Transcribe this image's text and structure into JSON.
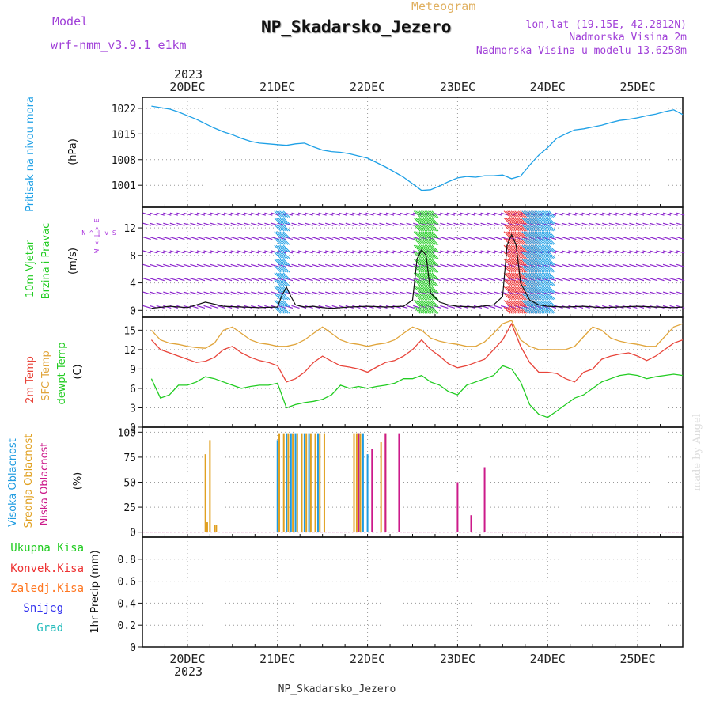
{
  "header": {
    "model_label": "Model",
    "model_name": "wrf-nmm_v3.9.1  e1km",
    "meteogram_label": "Meteogram",
    "station_title": "NP_Skadarsko_Jezero",
    "lonlat": "lon,lat (19.15E, 42.2812N)",
    "elevation": "Nadmorska Visina 2m",
    "model_elevation": "Nadmorska Visina u modelu 13.6258m",
    "footer_station": "NP_Skadarsko_Jezero",
    "credit": "made by Angel"
  },
  "colors": {
    "pressure": "#1ea0e6",
    "wind_label": "#22cc22",
    "temp2m": "#e8443a",
    "sfc_temp": "#e0a43a",
    "dewpt": "#22cc22",
    "high_cloud": "#1e9be0",
    "mid_cloud": "#e0a020",
    "low_cloud": "#cc1a8a",
    "total_precip": "#22cc22",
    "conv_precip": "#ee3333",
    "frozen_precip": "#ff7722",
    "snow": "#3333ee",
    "hail": "#22bbbb",
    "compass": "#aa33dd"
  },
  "time_axis": {
    "year": "2023",
    "ticks": [
      "20DEC",
      "21DEC",
      "22DEC",
      "23DEC",
      "24DEC",
      "25DEC"
    ]
  },
  "panels": {
    "pressure": {
      "label": "Pritisak na nivou mora",
      "unit": "(hPa)"
    },
    "wind": {
      "label1": "10m Vjetar",
      "label2": "Brzina i Pravac",
      "unit": "(m/s)",
      "compass": "W  <-|->  E",
      "compass_ns": "N ^ | v S"
    },
    "temp": {
      "label_t2": "2m Temp",
      "label_sfc": "SFC Temp",
      "label_dew": "dewpt Temp",
      "unit": "(C)"
    },
    "cloud": {
      "label_high": "Visoka Oblacnost",
      "label_mid": "Srednja Oblacnost",
      "label_low": "Niska Oblacnost",
      "unit": "(%)"
    },
    "precip": {
      "legend": [
        "Ukupna Kisa",
        "Konvek.Kisa",
        "Zaledj.Kisa",
        "Snijeg",
        "Grad"
      ],
      "label": "1hr Precip (mm)"
    }
  },
  "chart_data": [
    {
      "type": "line",
      "title": "Pritisak na nivou mora",
      "ylabel": "(hPa)",
      "ylim": [
        995,
        1025
      ],
      "yticks": [
        1001,
        1008,
        1015,
        1022
      ],
      "x": [
        19.6,
        19.7,
        19.8,
        19.9,
        20.0,
        20.1,
        20.2,
        20.3,
        20.4,
        20.5,
        20.6,
        20.7,
        20.8,
        20.9,
        21.0,
        21.1,
        21.2,
        21.3,
        21.4,
        21.5,
        21.6,
        21.7,
        21.8,
        21.9,
        22.0,
        22.1,
        22.2,
        22.3,
        22.4,
        22.5,
        22.6,
        22.7,
        22.8,
        22.9,
        23.0,
        23.1,
        23.2,
        23.3,
        23.4,
        23.5,
        23.6,
        23.7,
        23.8,
        23.9,
        24.0,
        24.1,
        24.2,
        24.3,
        24.4,
        24.5,
        24.6,
        24.7,
        24.8,
        24.9,
        25.0,
        25.1,
        25.2,
        25.3,
        25.4,
        25.5
      ],
      "series": [
        {
          "name": "Pritisak na nivou mora",
          "values": [
            1022.6,
            1022.2,
            1021.8,
            1021.0,
            1020.0,
            1019.0,
            1017.8,
            1016.6,
            1015.6,
            1014.8,
            1013.8,
            1013.0,
            1012.5,
            1012.3,
            1012.1,
            1011.9,
            1012.3,
            1012.5,
            1011.5,
            1010.6,
            1010.2,
            1010.0,
            1009.6,
            1009.0,
            1008.4,
            1007.2,
            1006.0,
            1004.6,
            1003.2,
            1001.4,
            999.6,
            999.8,
            1000.8,
            1002.0,
            1003.0,
            1003.4,
            1003.2,
            1003.6,
            1003.6,
            1003.8,
            1002.8,
            1003.5,
            1006.5,
            1009.2,
            1011.3,
            1013.8,
            1015.0,
            1016.1,
            1016.4,
            1016.9,
            1017.4,
            1018.1,
            1018.7,
            1019.0,
            1019.4,
            1020.0,
            1020.4,
            1021.1,
            1021.6,
            1020.3
          ]
        }
      ]
    },
    {
      "type": "line",
      "title": "10m Vjetar Brzina i Pravac",
      "ylabel": "(m/s)",
      "ylim": [
        -1,
        15
      ],
      "yticks": [
        0,
        4,
        8,
        12
      ],
      "x": [
        19.6,
        19.8,
        20.0,
        20.2,
        20.4,
        20.6,
        20.8,
        21.0,
        21.05,
        21.1,
        21.15,
        21.2,
        21.3,
        21.4,
        21.5,
        21.6,
        21.8,
        22.0,
        22.2,
        22.4,
        22.5,
        22.55,
        22.6,
        22.65,
        22.7,
        22.8,
        22.9,
        23.0,
        23.2,
        23.4,
        23.5,
        23.55,
        23.6,
        23.65,
        23.7,
        23.8,
        23.9,
        24.0,
        24.2,
        24.4,
        24.6,
        24.8,
        25.0,
        25.2,
        25.4,
        25.5
      ],
      "series": [
        {
          "name": "Brzina",
          "values": [
            0.3,
            0.6,
            0.4,
            1.2,
            0.6,
            0.5,
            0.4,
            0.5,
            2.2,
            3.4,
            2.0,
            0.8,
            0.5,
            0.6,
            0.4,
            0.3,
            0.5,
            0.6,
            0.5,
            0.6,
            1.5,
            7.5,
            8.8,
            8.0,
            2.5,
            1.2,
            0.8,
            0.6,
            0.5,
            0.8,
            2.0,
            9.5,
            11.0,
            9.5,
            4.0,
            1.5,
            0.8,
            0.6,
            0.5,
            0.6,
            0.4,
            0.5,
            0.6,
            0.5,
            0.4,
            0.5
          ]
        }
      ]
    },
    {
      "type": "line",
      "title": "2m Temp / SFC Temp / dewpt Temp",
      "ylabel": "(C)",
      "ylim": [
        0,
        17
      ],
      "yticks": [
        0,
        3,
        6,
        9,
        12,
        15
      ],
      "x": [
        19.6,
        19.7,
        19.8,
        19.9,
        20.0,
        20.1,
        20.2,
        20.3,
        20.4,
        20.5,
        20.6,
        20.7,
        20.8,
        20.9,
        21.0,
        21.1,
        21.2,
        21.3,
        21.4,
        21.5,
        21.6,
        21.7,
        21.8,
        21.9,
        22.0,
        22.1,
        22.2,
        22.3,
        22.4,
        22.5,
        22.6,
        22.7,
        22.8,
        22.9,
        23.0,
        23.1,
        23.2,
        23.3,
        23.4,
        23.5,
        23.6,
        23.7,
        23.8,
        23.9,
        24.0,
        24.1,
        24.2,
        24.3,
        24.4,
        24.5,
        24.6,
        24.7,
        24.8,
        24.9,
        25.0,
        25.1,
        25.2,
        25.3,
        25.4,
        25.5
      ],
      "series": [
        {
          "name": "2m Temp",
          "values": [
            13.5,
            12.0,
            11.5,
            11.0,
            10.5,
            10.0,
            10.2,
            10.8,
            12.0,
            12.5,
            11.5,
            10.8,
            10.3,
            10.0,
            9.5,
            7.0,
            7.5,
            8.5,
            10.0,
            11.0,
            10.2,
            9.5,
            9.3,
            9.0,
            8.5,
            9.3,
            10.0,
            10.3,
            11.0,
            12.0,
            13.5,
            12.0,
            11.0,
            9.8,
            9.2,
            9.5,
            10.0,
            10.5,
            12.0,
            13.5,
            16.0,
            12.5,
            10.0,
            8.5,
            8.5,
            8.3,
            7.5,
            7.0,
            8.5,
            9.0,
            10.5,
            11.0,
            11.3,
            11.5,
            11.0,
            10.3,
            11.0,
            12.0,
            13.0,
            13.5
          ]
        },
        {
          "name": "SFC Temp",
          "values": [
            15.0,
            13.5,
            13.0,
            12.8,
            12.5,
            12.3,
            12.2,
            13.0,
            15.0,
            15.5,
            14.5,
            13.5,
            13.0,
            12.8,
            12.5,
            12.5,
            12.8,
            13.5,
            14.5,
            15.5,
            14.5,
            13.5,
            13.0,
            12.8,
            12.5,
            12.8,
            13.0,
            13.5,
            14.5,
            15.5,
            15.0,
            13.8,
            13.3,
            13.0,
            12.8,
            12.5,
            12.5,
            13.2,
            14.5,
            16.0,
            16.5,
            13.5,
            12.5,
            12.0,
            12.0,
            12.0,
            12.0,
            12.5,
            14.0,
            15.5,
            15.0,
            13.8,
            13.3,
            13.0,
            12.8,
            12.5,
            12.5,
            14.0,
            15.5,
            16.0
          ]
        },
        {
          "name": "dewpt Temp",
          "values": [
            7.5,
            4.5,
            5.0,
            6.5,
            6.5,
            7.0,
            7.8,
            7.5,
            7.0,
            6.5,
            6.0,
            6.3,
            6.5,
            6.5,
            6.8,
            3.0,
            3.5,
            3.8,
            4.0,
            4.3,
            5.0,
            6.5,
            6.0,
            6.3,
            6.0,
            6.3,
            6.5,
            6.8,
            7.5,
            7.5,
            8.0,
            7.0,
            6.5,
            5.5,
            5.0,
            6.5,
            7.0,
            7.5,
            8.0,
            9.5,
            9.0,
            7.0,
            3.5,
            2.0,
            1.5,
            2.5,
            3.5,
            4.5,
            5.0,
            6.0,
            7.0,
            7.5,
            8.0,
            8.2,
            8.0,
            7.5,
            7.8,
            8.0,
            8.2,
            8.0
          ]
        }
      ]
    },
    {
      "type": "bar",
      "title": "Visoka / Srednja / Niska Oblacnost",
      "ylabel": "(%)",
      "ylim": [
        -5,
        105
      ],
      "yticks": [
        0,
        25,
        50,
        75,
        100
      ],
      "series": [
        {
          "name": "Visoka Oblacnost",
          "x": [
            21.0,
            21.1,
            21.15,
            21.2,
            21.3,
            21.35,
            21.45,
            21.9,
            21.95,
            22.0
          ],
          "values": [
            92,
            99,
            99,
            99,
            99,
            99,
            99,
            99,
            99,
            78
          ]
        },
        {
          "name": "Srednja Oblacnost",
          "x": [
            20.2,
            20.22,
            20.25,
            20.3,
            20.32,
            21.02,
            21.07,
            21.12,
            21.17,
            21.22,
            21.27,
            21.32,
            21.37,
            21.42,
            21.47,
            21.52,
            21.85,
            21.88,
            21.92,
            22.15,
            22.2
          ],
          "values": [
            78,
            10,
            92,
            7,
            7,
            99,
            99,
            99,
            99,
            99,
            99,
            99,
            99,
            99,
            99,
            99,
            99,
            99,
            99,
            90,
            99
          ]
        },
        {
          "name": "Niska Oblacnost",
          "x": [
            21.9,
            22.05,
            22.2,
            22.35,
            23.0,
            23.15,
            23.3
          ],
          "values": [
            99,
            83,
            99,
            99,
            50,
            17,
            65
          ]
        }
      ]
    },
    {
      "type": "line",
      "title": "1hr Precip (mm)",
      "ylabel": "1hr Precip (mm)",
      "ylim": [
        0,
        1
      ],
      "yticks": [
        0,
        0.2,
        0.4,
        0.6,
        0.8
      ],
      "series": [
        {
          "name": "Ukupna Kisa",
          "values": []
        },
        {
          "name": "Konvek.Kisa",
          "values": []
        },
        {
          "name": "Zaledj.Kisa",
          "values": []
        },
        {
          "name": "Snijeg",
          "values": []
        },
        {
          "name": "Grad",
          "values": []
        }
      ]
    }
  ]
}
